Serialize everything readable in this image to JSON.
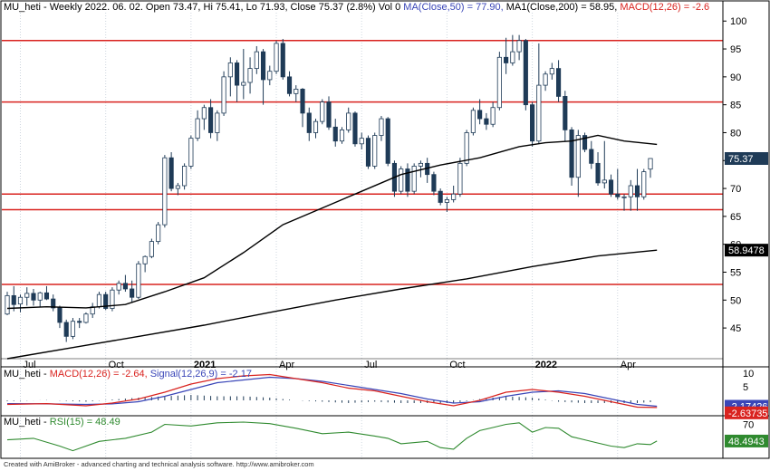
{
  "footer": "Created with AmiBroker - advanced charting and technical analysis software. http://www.amibroker.com",
  "colors": {
    "up": "#ffffff",
    "down": "#1f3b57",
    "ma50": "#000000",
    "ma200": "#000000",
    "level": "#d9231f",
    "macd": "#d9231f",
    "signal": "#3a46b8",
    "rsi": "#2f8a2f",
    "grid": "#cfd6df"
  },
  "header_price": {
    "symbol_info": "MU_heti - Weekly 2022. 06. 02. Open 73.47, Hi 75.41, Lo 71.93, Close 75.37 (2.8%) Vol 0",
    "ma50_label": "MA(Close,50) = 77.90,",
    "ma200_label": "MA1(Close,200) = 58.95,",
    "macd_label": "MACD(12,26) = -2.6"
  },
  "header_macd": {
    "prefix": "MU_heti - ",
    "macd_label": "MACD(12,26) = -2.64,",
    "signal_label": "Signal(12,26,9) = -2.17"
  },
  "header_rsi": {
    "prefix": "MU_heti - ",
    "rsi_label": "RSI(15) = 48.49"
  },
  "chart_data": [
    {
      "type": "candlestick",
      "panel": "price",
      "x_labels": [
        {
          "index": 2,
          "label": "Jul"
        },
        {
          "index": 15,
          "label": "Oct"
        },
        {
          "index": 28,
          "label": "2021"
        },
        {
          "index": 41,
          "label": "Apr"
        },
        {
          "index": 54,
          "label": "Jul"
        },
        {
          "index": 67,
          "label": "Oct"
        },
        {
          "index": 80,
          "label": "2022"
        },
        {
          "index": 93,
          "label": "Apr"
        }
      ],
      "y_ticks": [
        45,
        50,
        55,
        60,
        65,
        70,
        75,
        80,
        85,
        90,
        95,
        100
      ],
      "ylim": [
        39.5,
        101.5
      ],
      "candles": [
        [
          47.5,
          51.5,
          47.3,
          50.8
        ],
        [
          50.8,
          52.5,
          48.0,
          49.2
        ],
        [
          49.3,
          51.0,
          47.8,
          50.5
        ],
        [
          50.5,
          52.3,
          49.0,
          51.2
        ],
        [
          51.2,
          52.0,
          49.0,
          50.0
        ],
        [
          50.0,
          51.5,
          48.8,
          51.3
        ],
        [
          51.3,
          52.5,
          50.0,
          50.2
        ],
        [
          50.2,
          51.0,
          48.0,
          48.6
        ],
        [
          48.6,
          49.0,
          45.0,
          46.0
        ],
        [
          46.0,
          46.5,
          42.5,
          43.5
        ],
        [
          43.5,
          46.8,
          43.0,
          46.2
        ],
        [
          46.2,
          46.8,
          45.0,
          46.0
        ],
        [
          46.0,
          47.8,
          45.8,
          47.5
        ],
        [
          47.5,
          49.5,
          46.8,
          48.8
        ],
        [
          48.8,
          51.5,
          48.5,
          51.0
        ],
        [
          51.0,
          51.5,
          48.2,
          48.5
        ],
        [
          48.5,
          52.3,
          48.0,
          51.8
        ],
        [
          51.8,
          53.5,
          51.0,
          53.0
        ],
        [
          53.0,
          54.5,
          51.5,
          52.0
        ],
        [
          52.0,
          53.5,
          49.5,
          50.5
        ],
        [
          50.5,
          57.0,
          50.2,
          56.5
        ],
        [
          56.5,
          58.0,
          55.0,
          57.8
        ],
        [
          57.8,
          61.0,
          57.5,
          60.5
        ],
        [
          60.5,
          64.0,
          60.0,
          63.5
        ],
        [
          63.5,
          76.0,
          63.0,
          75.5
        ],
        [
          75.5,
          76.5,
          69.5,
          70.0
        ],
        [
          70.0,
          71.0,
          68.8,
          70.5
        ],
        [
          70.5,
          74.5,
          69.8,
          74.0
        ],
        [
          74.0,
          79.5,
          73.5,
          79.0
        ],
        [
          79.0,
          84.0,
          78.5,
          82.5
        ],
        [
          82.5,
          85.0,
          80.5,
          84.5
        ],
        [
          84.5,
          86.0,
          79.0,
          80.0
        ],
        [
          80.0,
          84.0,
          78.5,
          83.5
        ],
        [
          83.5,
          91.0,
          83.0,
          90.0
        ],
        [
          90.0,
          93.5,
          86.5,
          92.5
        ],
        [
          92.5,
          93.0,
          85.5,
          88.5
        ],
        [
          88.5,
          95.0,
          86.0,
          89.0
        ],
        [
          89.0,
          93.5,
          87.0,
          91.5
        ],
        [
          91.5,
          95.5,
          90.5,
          94.5
        ],
        [
          94.5,
          95.0,
          85.0,
          89.5
        ],
        [
          89.5,
          92.0,
          88.5,
          91.0
        ],
        [
          91.0,
          96.5,
          90.5,
          96.0
        ],
        [
          96.0,
          96.8,
          89.5,
          90.0
        ],
        [
          90.0,
          91.0,
          86.5,
          87.0
        ],
        [
          87.0,
          88.5,
          85.5,
          87.8
        ],
        [
          87.8,
          88.0,
          81.0,
          83.5
        ],
        [
          83.5,
          84.5,
          78.5,
          80.0
        ],
        [
          80.0,
          82.5,
          79.0,
          82.0
        ],
        [
          82.0,
          86.0,
          81.5,
          85.5
        ],
        [
          85.5,
          86.5,
          80.5,
          81.0
        ],
        [
          81.0,
          82.5,
          77.5,
          78.5
        ],
        [
          78.5,
          81.0,
          78.0,
          80.5
        ],
        [
          80.5,
          84.5,
          80.0,
          83.5
        ],
        [
          83.5,
          83.8,
          77.5,
          78.0
        ],
        [
          78.0,
          80.0,
          77.0,
          79.0
        ],
        [
          79.0,
          79.5,
          73.5,
          74.0
        ],
        [
          74.0,
          80.0,
          73.5,
          79.5
        ],
        [
          79.5,
          83.0,
          78.5,
          82.5
        ],
        [
          82.5,
          82.8,
          74.0,
          74.5
        ],
        [
          74.5,
          75.0,
          68.5,
          69.5
        ],
        [
          69.5,
          74.0,
          69.0,
          73.5
        ],
        [
          73.5,
          74.5,
          68.5,
          69.5
        ],
        [
          69.5,
          74.5,
          69.0,
          74.0
        ],
        [
          74.0,
          75.0,
          72.0,
          74.5
        ],
        [
          74.5,
          75.5,
          71.0,
          72.5
        ],
        [
          72.5,
          73.0,
          68.8,
          69.5
        ],
        [
          69.5,
          70.0,
          67.0,
          67.5
        ],
        [
          67.5,
          68.5,
          65.8,
          68.0
        ],
        [
          68.0,
          70.5,
          67.5,
          69.0
        ],
        [
          69.0,
          75.5,
          68.5,
          74.5
        ],
        [
          74.5,
          80.5,
          74.0,
          80.0
        ],
        [
          80.0,
          84.5,
          79.5,
          84.0
        ],
        [
          84.0,
          86.0,
          81.5,
          82.5
        ],
        [
          82.5,
          83.5,
          80.5,
          81.5
        ],
        [
          81.5,
          85.5,
          81.0,
          84.5
        ],
        [
          84.5,
          94.5,
          84.0,
          93.5
        ],
        [
          93.5,
          97.0,
          90.5,
          92.5
        ],
        [
          92.5,
          97.5,
          92.0,
          94.5
        ],
        [
          94.5,
          97.5,
          93.0,
          96.5
        ],
        [
          96.5,
          96.8,
          84.0,
          85.0
        ],
        [
          85.0,
          85.5,
          77.5,
          78.5
        ],
        [
          78.5,
          96.0,
          78.0,
          88.5
        ],
        [
          88.5,
          91.0,
          87.5,
          90.5
        ],
        [
          90.5,
          92.5,
          89.5,
          91.5
        ],
        [
          91.5,
          93.0,
          85.5,
          86.5
        ],
        [
          86.5,
          87.5,
          78.5,
          80.5
        ],
        [
          80.5,
          81.0,
          70.5,
          72.0
        ],
        [
          72.0,
          80.5,
          68.5,
          79.5
        ],
        [
          79.5,
          80.0,
          76.5,
          77.0
        ],
        [
          77.0,
          78.5,
          73.5,
          74.5
        ],
        [
          74.5,
          76.5,
          70.5,
          71.0
        ],
        [
          71.0,
          78.5,
          70.0,
          71.5
        ],
        [
          71.5,
          72.5,
          68.5,
          69.0
        ],
        [
          69.0,
          73.5,
          68.0,
          68.5
        ],
        [
          68.5,
          69.0,
          66.0,
          68.5
        ],
        [
          68.5,
          71.5,
          66.0,
          70.5
        ],
        [
          70.5,
          73.5,
          66.0,
          68.5
        ],
        [
          68.5,
          73.5,
          68.0,
          73.0
        ],
        [
          73.47,
          75.41,
          71.93,
          75.37
        ]
      ],
      "ma50": {
        "name": "MA(Close,50)",
        "last": 77.9,
        "points": [
          [
            0,
            48.5
          ],
          [
            6,
            48.8
          ],
          [
            12,
            48.6
          ],
          [
            18,
            49.2
          ],
          [
            24,
            51.5
          ],
          [
            30,
            54.0
          ],
          [
            36,
            58.5
          ],
          [
            42,
            63.5
          ],
          [
            48,
            66.5
          ],
          [
            54,
            69.5
          ],
          [
            60,
            72.5
          ],
          [
            66,
            74.2
          ],
          [
            72,
            75.5
          ],
          [
            78,
            77.5
          ],
          [
            82,
            78.2
          ],
          [
            86,
            78.5
          ],
          [
            90,
            79.5
          ],
          [
            94,
            78.5
          ],
          [
            99,
            77.9
          ]
        ]
      },
      "ma200": {
        "name": "MA1(Close,200)",
        "last": 58.9478,
        "points": [
          [
            0,
            39.5
          ],
          [
            10,
            41.5
          ],
          [
            20,
            43.5
          ],
          [
            30,
            45.5
          ],
          [
            40,
            47.8
          ],
          [
            50,
            50.0
          ],
          [
            60,
            52.0
          ],
          [
            70,
            53.8
          ],
          [
            80,
            56.0
          ],
          [
            90,
            57.9
          ],
          [
            99,
            58.95
          ]
        ]
      },
      "horizontal_levels": [
        96.5,
        85.5,
        69.0,
        66.2,
        52.8
      ],
      "last_close_label": "75.37",
      "ma200_label": "58.9478"
    },
    {
      "type": "line",
      "panel": "macd",
      "y_ticks": [
        10,
        5
      ],
      "ylim": [
        -6,
        12
      ],
      "series": [
        {
          "name": "MACD(12,26)",
          "last": -2.64,
          "points": [
            [
              0,
              -1.5
            ],
            [
              6,
              -1.2
            ],
            [
              12,
              -2.0
            ],
            [
              16,
              -1.0
            ],
            [
              20,
              0.5
            ],
            [
              24,
              3.0
            ],
            [
              28,
              6.0
            ],
            [
              32,
              8.0
            ],
            [
              36,
              9.0
            ],
            [
              40,
              9.5
            ],
            [
              44,
              8.0
            ],
            [
              48,
              6.5
            ],
            [
              52,
              4.5
            ],
            [
              56,
              3.5
            ],
            [
              60,
              1.5
            ],
            [
              64,
              -0.5
            ],
            [
              68,
              -2.0
            ],
            [
              72,
              0.0
            ],
            [
              76,
              3.0
            ],
            [
              80,
              4.0
            ],
            [
              84,
              3.0
            ],
            [
              88,
              1.5
            ],
            [
              92,
              -0.5
            ],
            [
              96,
              -2.5
            ],
            [
              99,
              -2.64
            ]
          ]
        },
        {
          "name": "Signal(12,26,9)",
          "last": -2.17,
          "points": [
            [
              0,
              -1.2
            ],
            [
              6,
              -1.3
            ],
            [
              12,
              -1.5
            ],
            [
              16,
              -1.3
            ],
            [
              20,
              -0.5
            ],
            [
              24,
              1.5
            ],
            [
              28,
              4.0
            ],
            [
              32,
              6.5
            ],
            [
              36,
              7.5
            ],
            [
              40,
              8.5
            ],
            [
              44,
              8.0
            ],
            [
              48,
              7.0
            ],
            [
              52,
              5.5
            ],
            [
              56,
              4.0
            ],
            [
              60,
              2.5
            ],
            [
              64,
              0.5
            ],
            [
              68,
              -1.0
            ],
            [
              72,
              -0.5
            ],
            [
              76,
              1.5
            ],
            [
              80,
              3.0
            ],
            [
              84,
              3.5
            ],
            [
              88,
              2.5
            ],
            [
              92,
              0.5
            ],
            [
              96,
              -1.5
            ],
            [
              99,
              -2.17
            ]
          ]
        }
      ],
      "macd_label": "-2.63735",
      "signal_label": "-2.17426"
    },
    {
      "type": "line",
      "panel": "rsi",
      "y_ticks": [
        70
      ],
      "ylim": [
        25,
        80
      ],
      "series": [
        {
          "name": "RSI(15)",
          "last": 48.49,
          "points": [
            [
              0,
              50
            ],
            [
              4,
              52
            ],
            [
              8,
              42
            ],
            [
              10,
              36
            ],
            [
              14,
              48
            ],
            [
              18,
              52
            ],
            [
              22,
              60
            ],
            [
              24,
              70
            ],
            [
              28,
              68
            ],
            [
              32,
              72
            ],
            [
              36,
              73
            ],
            [
              40,
              71
            ],
            [
              44,
              65
            ],
            [
              48,
              58
            ],
            [
              52,
              60
            ],
            [
              56,
              55
            ],
            [
              58,
              52
            ],
            [
              60,
              45
            ],
            [
              64,
              48
            ],
            [
              66,
              40
            ],
            [
              68,
              38
            ],
            [
              70,
              52
            ],
            [
              72,
              62
            ],
            [
              74,
              66
            ],
            [
              76,
              70
            ],
            [
              78,
              72
            ],
            [
              80,
              60
            ],
            [
              82,
              66
            ],
            [
              84,
              65
            ],
            [
              86,
              54
            ],
            [
              88,
              50
            ],
            [
              90,
              46
            ],
            [
              92,
              42
            ],
            [
              94,
              40
            ],
            [
              96,
              45
            ],
            [
              98,
              44
            ],
            [
              99,
              48.49
            ]
          ]
        }
      ],
      "rsi_label": "48.4943"
    }
  ]
}
